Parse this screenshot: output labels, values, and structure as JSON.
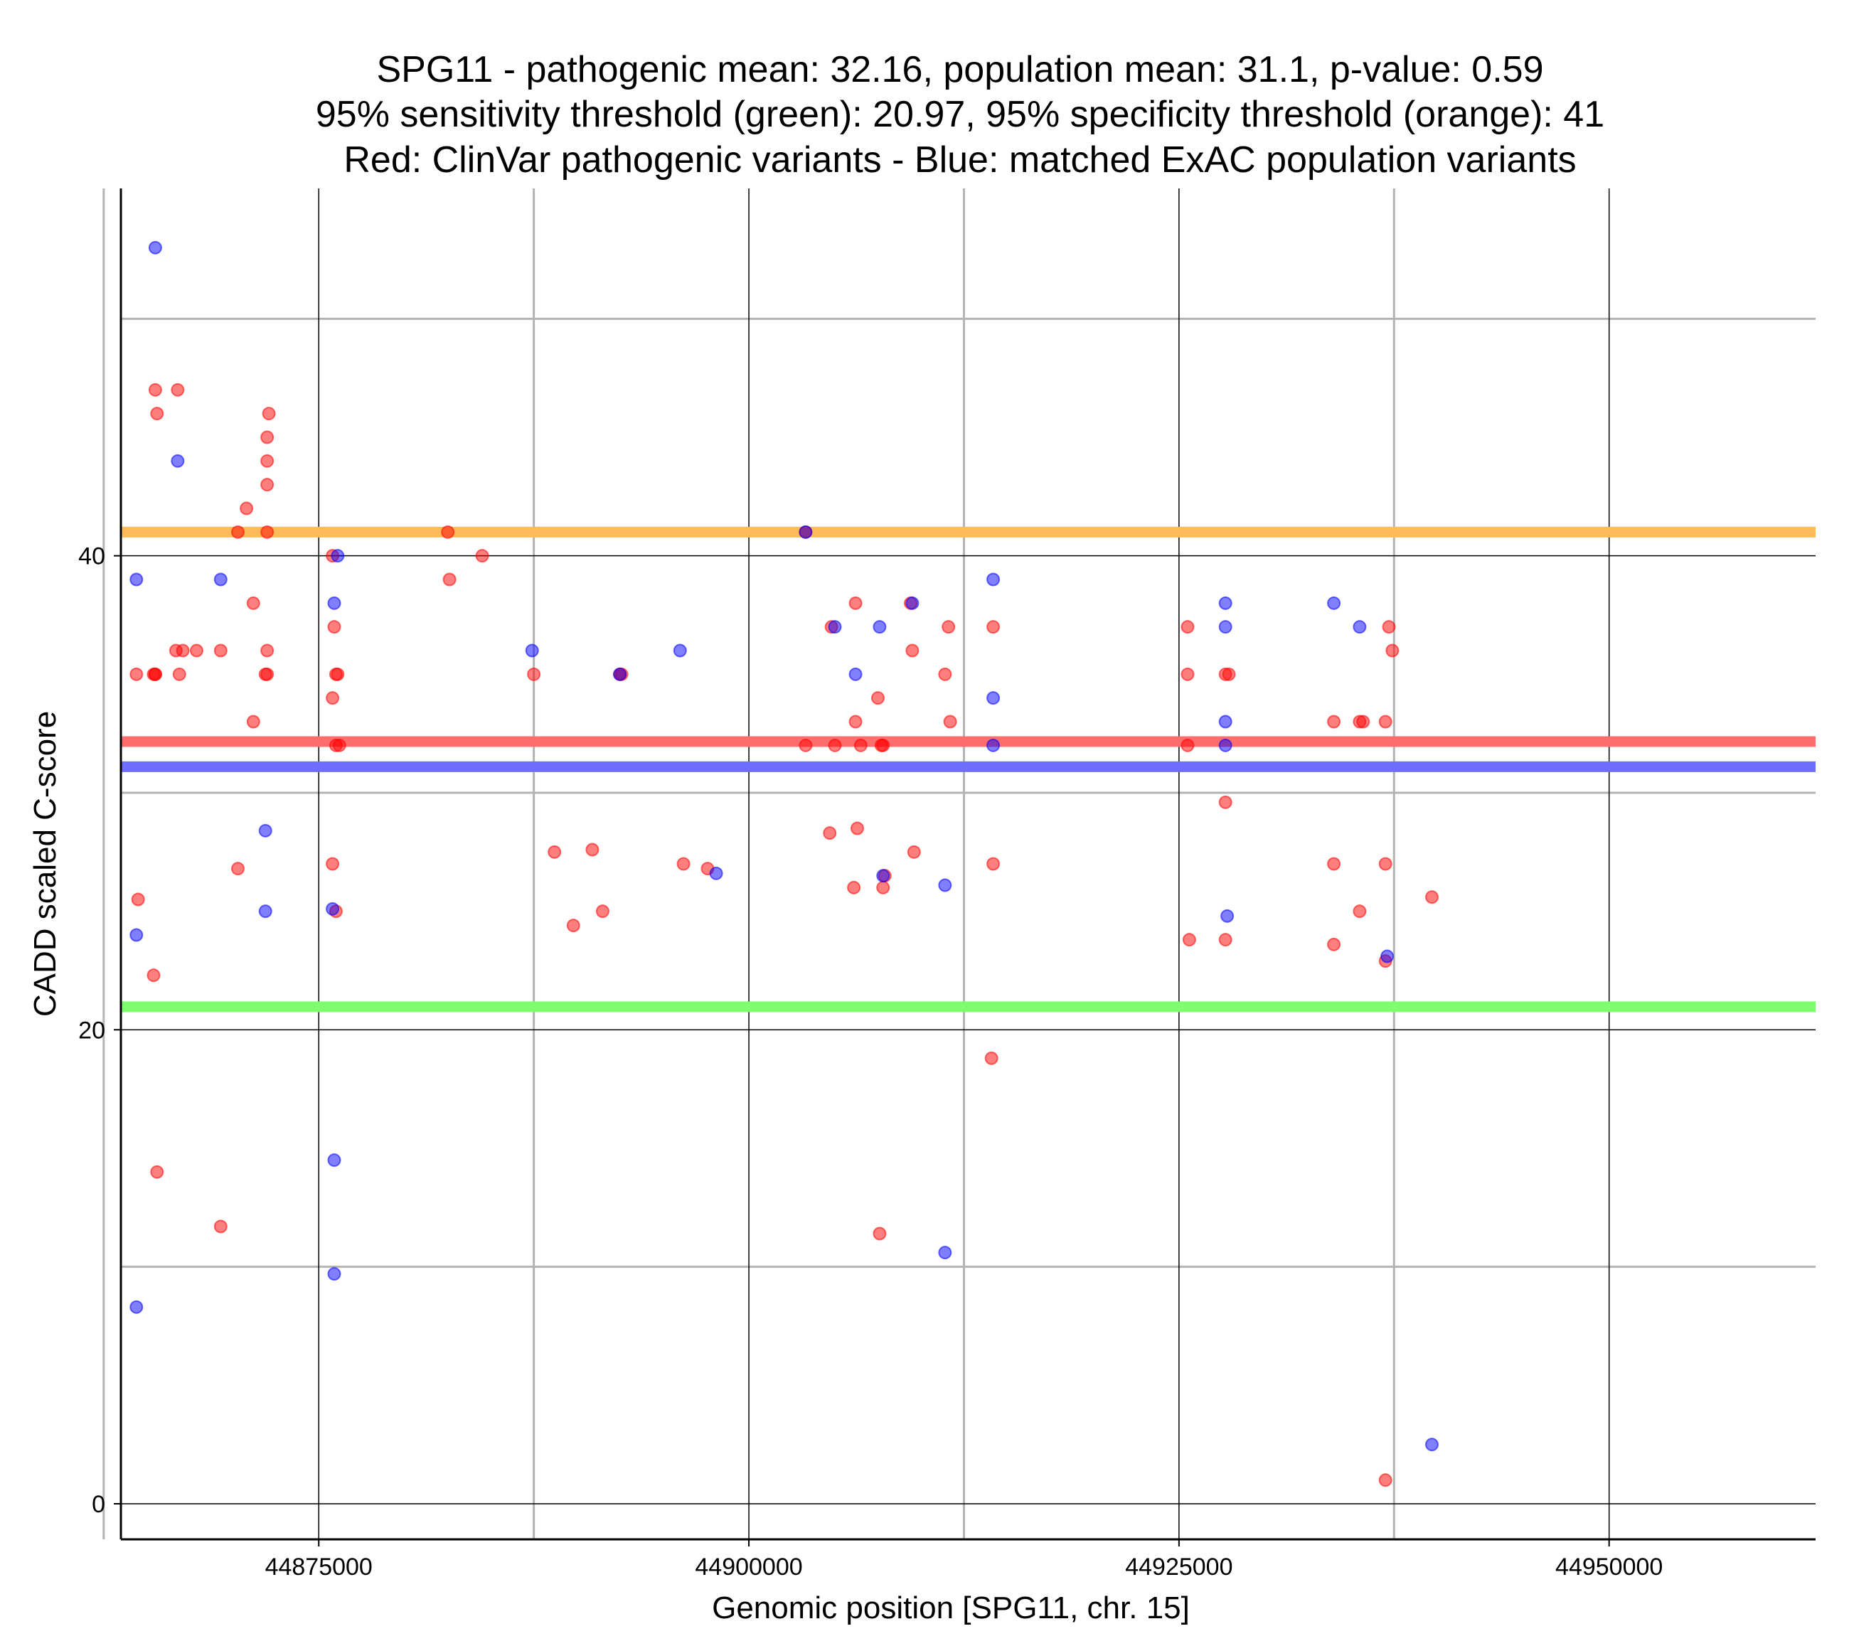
{
  "chart_data": {
    "type": "scatter",
    "title_lines": [
      "SPG11 - pathogenic mean: 32.16, population mean: 31.1, p-value: 0.59",
      "95% sensitivity threshold (green): 20.97, 95% specificity threshold (orange): 41",
      "Red: ClinVar pathogenic variants - Blue: matched ExAC population variants"
    ],
    "xlabel": "Genomic position [SPG11, chr. 15]",
    "ylabel": "CADD scaled C-score",
    "xlim": [
      44863500,
      44962000
    ],
    "ylim": [
      -1.5,
      55.5
    ],
    "x_ticks": [
      44875000,
      44900000,
      44925000,
      44950000
    ],
    "x_tick_labels": [
      "44875000",
      "44900000",
      "44925000",
      "44950000"
    ],
    "x_minor_grid": [
      44862500,
      44887500,
      44912500,
      44937500
    ],
    "y_ticks": [
      0,
      20,
      40
    ],
    "y_tick_labels": [
      "0",
      "20",
      "40"
    ],
    "y_minor_grid": [
      10,
      30,
      50
    ],
    "grid": true,
    "colors": {
      "pathogenic": "#ff0000",
      "population": "#0000ff",
      "pathogenic_mean": "#ff6e6e",
      "population_mean": "#6e6eff",
      "sensitivity": "#7dff6e",
      "specificity": "#ffbb5a",
      "major_grid": "#000000",
      "minor_grid": "#b3b3b3"
    },
    "reference_lines": [
      {
        "name": "specificity-threshold",
        "label": "95% specificity threshold (orange)",
        "value": 41,
        "color": "#ffbb5a"
      },
      {
        "name": "pathogenic-mean",
        "label": "pathogenic mean",
        "value": 32.16,
        "color": "#ff6e6e"
      },
      {
        "name": "population-mean",
        "label": "population mean",
        "value": 31.1,
        "color": "#6e6eff"
      },
      {
        "name": "sensitivity-threshold",
        "label": "95% sensitivity threshold (green)",
        "value": 20.97,
        "color": "#7dff6e"
      }
    ],
    "series": [
      {
        "name": "ClinVar pathogenic variants",
        "color": "#ff0000",
        "points": [
          [
            44865500,
            47
          ],
          [
            44865600,
            46
          ],
          [
            44866800,
            47
          ],
          [
            44865500,
            35
          ],
          [
            44866900,
            35
          ],
          [
            44864400,
            35
          ],
          [
            44865400,
            35
          ],
          [
            44865500,
            35
          ],
          [
            44866700,
            36
          ],
          [
            44867100,
            36
          ],
          [
            44867900,
            36
          ],
          [
            44869300,
            36
          ],
          [
            44864500,
            25.5
          ],
          [
            44865400,
            22.3
          ],
          [
            44865600,
            14
          ],
          [
            44869300,
            11.7
          ],
          [
            44870300,
            41
          ],
          [
            44871200,
            38
          ],
          [
            44871200,
            33
          ],
          [
            44872000,
            36
          ],
          [
            44872000,
            35
          ],
          [
            44872000,
            43
          ],
          [
            44872000,
            44
          ],
          [
            44872000,
            45
          ],
          [
            44872100,
            46
          ],
          [
            44872000,
            41
          ],
          [
            44870800,
            42
          ],
          [
            44871900,
            35
          ],
          [
            44870300,
            26.8
          ],
          [
            44875800,
            40
          ],
          [
            44876000,
            35
          ],
          [
            44876100,
            35
          ],
          [
            44875900,
            37
          ],
          [
            44875800,
            34
          ],
          [
            44876000,
            32
          ],
          [
            44876200,
            32
          ],
          [
            44875800,
            27
          ],
          [
            44876000,
            25
          ],
          [
            44882500,
            41
          ],
          [
            44882600,
            39
          ],
          [
            44884500,
            40
          ],
          [
            44887500,
            35
          ],
          [
            44888700,
            27.5
          ],
          [
            44889800,
            24.4
          ],
          [
            44890900,
            27.6
          ],
          [
            44891500,
            25
          ],
          [
            44892500,
            35
          ],
          [
            44892600,
            35
          ],
          [
            44896200,
            27
          ],
          [
            44897600,
            26.8
          ],
          [
            44903300,
            32
          ],
          [
            44904800,
            37
          ],
          [
            44905000,
            32
          ],
          [
            44904700,
            28.3
          ],
          [
            44903300,
            41
          ],
          [
            44906200,
            38
          ],
          [
            44906200,
            33
          ],
          [
            44906300,
            28.5
          ],
          [
            44906100,
            26
          ],
          [
            44906500,
            32
          ],
          [
            44907500,
            34
          ],
          [
            44907800,
            32
          ],
          [
            44907700,
            32
          ],
          [
            44907800,
            26
          ],
          [
            44907900,
            26.5
          ],
          [
            44907600,
            11.4
          ],
          [
            44909400,
            38
          ],
          [
            44909500,
            36
          ],
          [
            44909600,
            27.5
          ],
          [
            44911600,
            37
          ],
          [
            44911400,
            35
          ],
          [
            44911700,
            33
          ],
          [
            44914200,
            37
          ],
          [
            44914200,
            27
          ],
          [
            44914100,
            18.8
          ],
          [
            44925500,
            37
          ],
          [
            44925500,
            35
          ],
          [
            44925500,
            32
          ],
          [
            44927700,
            35
          ],
          [
            44927700,
            29.6
          ],
          [
            44927700,
            23.8
          ],
          [
            44925600,
            23.8
          ],
          [
            44927900,
            35
          ],
          [
            44934000,
            33
          ],
          [
            44934000,
            27
          ],
          [
            44934000,
            23.6
          ],
          [
            44935500,
            33
          ],
          [
            44935700,
            33
          ],
          [
            44935500,
            25
          ],
          [
            44937200,
            37
          ],
          [
            44937400,
            36
          ],
          [
            44937000,
            33
          ],
          [
            44937000,
            27
          ],
          [
            44937000,
            22.9
          ],
          [
            44937000,
            1
          ],
          [
            44939700,
            25.6
          ]
        ]
      },
      {
        "name": "matched ExAC population variants",
        "color": "#0000ff",
        "points": [
          [
            44865500,
            53
          ],
          [
            44866800,
            44
          ],
          [
            44864400,
            39
          ],
          [
            44864400,
            24
          ],
          [
            44864400,
            8.3
          ],
          [
            44869300,
            39
          ],
          [
            44871900,
            28.4
          ],
          [
            44871900,
            25
          ],
          [
            44875900,
            38
          ],
          [
            44876100,
            40
          ],
          [
            44875800,
            25.1
          ],
          [
            44875900,
            14.5
          ],
          [
            44875900,
            9.7
          ],
          [
            44887400,
            36
          ],
          [
            44892500,
            35
          ],
          [
            44896000,
            36
          ],
          [
            44898100,
            26.6
          ],
          [
            44903300,
            41
          ],
          [
            44905000,
            37
          ],
          [
            44906200,
            35
          ],
          [
            44907600,
            37
          ],
          [
            44907800,
            26.5
          ],
          [
            44909500,
            38
          ],
          [
            44911400,
            26.1
          ],
          [
            44911400,
            10.6
          ],
          [
            44914200,
            39
          ],
          [
            44914200,
            34
          ],
          [
            44914200,
            32
          ],
          [
            44927700,
            38
          ],
          [
            44927700,
            37
          ],
          [
            44927700,
            33
          ],
          [
            44927700,
            32
          ],
          [
            44927800,
            24.8
          ],
          [
            44934000,
            38
          ],
          [
            44935500,
            37
          ],
          [
            44937100,
            23.1
          ],
          [
            44939700,
            2.5
          ]
        ]
      }
    ]
  }
}
